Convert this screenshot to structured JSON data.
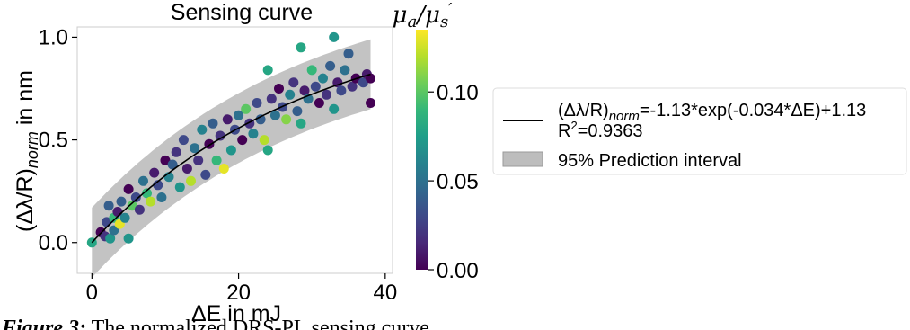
{
  "chart_data": {
    "type": "scatter",
    "title": "Sensing curve",
    "xlabel": "ΔE in mJ",
    "ylabel_main": "(Δλ/R)",
    "ylabel_sub": "norm",
    "ylabel_tail": " in nm",
    "xlim": [
      -2,
      41
    ],
    "ylim": [
      -0.15,
      1.05
    ],
    "x_ticks": [
      0,
      20,
      40
    ],
    "y_ticks": [
      0.0,
      0.5,
      1.0
    ],
    "x_tick_labels": [
      "0",
      "20",
      "40"
    ],
    "y_tick_labels": [
      "0.0",
      "0.5",
      "1.0"
    ],
    "grid": false,
    "fit": {
      "a": -1.13,
      "b": -0.034,
      "c": 1.13,
      "r2": 0.9363,
      "x_range": [
        0,
        38
      ]
    },
    "prediction_interval_halfwidth": 0.17,
    "colorbar": {
      "label_main": "μ",
      "label_sub1": "a",
      "label_slash": "/μ",
      "label_sub2": "s",
      "label_prime": "′",
      "min": 0.0,
      "max": 0.135,
      "ticks": [
        0.0,
        0.05,
        0.1
      ],
      "tick_labels": [
        "0.00",
        "0.05",
        "0.10"
      ],
      "colormap": [
        "#440154",
        "#482878",
        "#3e4989",
        "#31688e",
        "#26828e",
        "#1f9e89",
        "#35b779",
        "#6ece58",
        "#b5de2b",
        "#fde725"
      ]
    },
    "points": [
      [
        0,
        0.0,
        0.08
      ],
      [
        1.2,
        0.05,
        0.0
      ],
      [
        1.8,
        0.03,
        0.02
      ],
      [
        2,
        0.1,
        0.03
      ],
      [
        2.3,
        0.18,
        0.04
      ],
      [
        2.5,
        0.02,
        0.07
      ],
      [
        3,
        0.12,
        0.09
      ],
      [
        3,
        0.06,
        0.05
      ],
      [
        3.5,
        0.15,
        0.01
      ],
      [
        3.8,
        0.09,
        0.13
      ],
      [
        4,
        0.2,
        0.04
      ],
      [
        4.5,
        0.12,
        0.06
      ],
      [
        5,
        0.26,
        0.0
      ],
      [
        5,
        0.02,
        0.07
      ],
      [
        5.5,
        0.18,
        0.1
      ],
      [
        6,
        0.22,
        0.03
      ],
      [
        6.5,
        0.16,
        0.02
      ],
      [
        7,
        0.3,
        0.05
      ],
      [
        7.5,
        0.24,
        0.09
      ],
      [
        8,
        0.2,
        0.12
      ],
      [
        8.5,
        0.34,
        0.01
      ],
      [
        9,
        0.28,
        0.03
      ],
      [
        9.5,
        0.22,
        0.05
      ],
      [
        10,
        0.4,
        0.0
      ],
      [
        10.5,
        0.32,
        0.06
      ],
      [
        11,
        0.38,
        0.04
      ],
      [
        11.5,
        0.44,
        0.02
      ],
      [
        12,
        0.27,
        0.07
      ],
      [
        12.5,
        0.5,
        0.03
      ],
      [
        13,
        0.36,
        0.01
      ],
      [
        13.5,
        0.3,
        0.12
      ],
      [
        14,
        0.46,
        0.05
      ],
      [
        14.5,
        0.4,
        0.02
      ],
      [
        15,
        0.55,
        0.06
      ],
      [
        15.5,
        0.33,
        0.03
      ],
      [
        16,
        0.48,
        0.0
      ],
      [
        16.5,
        0.58,
        0.04
      ],
      [
        17,
        0.4,
        0.09
      ],
      [
        17.5,
        0.52,
        0.02
      ],
      [
        18,
        0.36,
        0.13
      ],
      [
        18.5,
        0.6,
        0.01
      ],
      [
        19,
        0.45,
        0.07
      ],
      [
        19.5,
        0.55,
        0.03
      ],
      [
        20,
        0.62,
        0.05
      ],
      [
        20.5,
        0.5,
        0.0
      ],
      [
        21,
        0.65,
        0.1
      ],
      [
        21.5,
        0.58,
        0.02
      ],
      [
        22,
        0.53,
        0.06
      ],
      [
        22.5,
        0.68,
        0.03
      ],
      [
        23,
        0.6,
        0.04
      ],
      [
        23.5,
        0.5,
        0.12
      ],
      [
        24,
        0.84,
        0.08
      ],
      [
        24,
        0.45,
        0.08
      ],
      [
        24.5,
        0.7,
        0.02
      ],
      [
        25,
        0.62,
        0.05
      ],
      [
        25.5,
        0.75,
        0.0
      ],
      [
        26,
        0.66,
        0.03
      ],
      [
        26.5,
        0.6,
        0.11
      ],
      [
        27,
        0.72,
        0.06
      ],
      [
        27.5,
        0.78,
        0.02
      ],
      [
        28,
        0.64,
        0.04
      ],
      [
        28.5,
        0.95,
        0.08
      ],
      [
        28.5,
        0.58,
        0.08
      ],
      [
        29,
        0.74,
        0.01
      ],
      [
        29.5,
        0.7,
        0.05
      ],
      [
        30,
        0.84,
        0.09
      ],
      [
        30.5,
        0.76,
        0.03
      ],
      [
        31,
        0.68,
        0.0
      ],
      [
        31.5,
        0.8,
        0.06
      ],
      [
        32,
        0.72,
        0.02
      ],
      [
        32.5,
        0.86,
        0.04
      ],
      [
        33,
        1.0,
        0.07
      ],
      [
        33,
        0.65,
        0.07
      ],
      [
        33.5,
        0.78,
        0.01
      ],
      [
        34,
        0.74,
        0.03
      ],
      [
        34.5,
        0.84,
        0.05
      ],
      [
        35,
        0.92,
        0.04
      ],
      [
        35.5,
        0.76,
        0.02
      ],
      [
        36,
        0.8,
        0.0
      ],
      [
        37,
        0.78,
        0.03
      ],
      [
        37.5,
        0.82,
        0.01
      ],
      [
        38,
        0.8,
        0.0
      ],
      [
        38,
        0.68,
        0.0
      ]
    ],
    "legend": {
      "placement": "right",
      "fit_label_main": "(Δλ/R)",
      "fit_label_sub": "norm",
      "fit_label_tail": "=-1.13*exp(-0.034*ΔE)+1.13",
      "r2_label_main": "R",
      "r2_label_sup": "2",
      "r2_label_tail": "=0.9363",
      "interval_label": "95% Prediction interval"
    }
  },
  "caption": {
    "lead": "Figure 3:",
    "text": " The normalized DRS-PL sensing curve"
  }
}
